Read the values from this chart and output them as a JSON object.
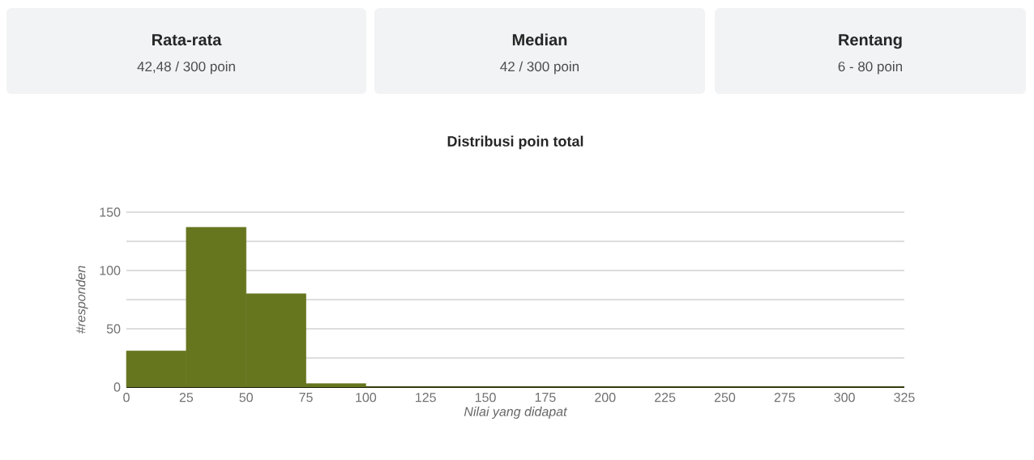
{
  "chart_data": [
    {
      "type": "other",
      "title": "Rata-rata",
      "subtitle": "42,48 / 300 poin"
    },
    {
      "type": "other",
      "title": "Median",
      "subtitle": "42 / 300 poin"
    },
    {
      "type": "other",
      "title": "Rentang",
      "subtitle": "6 - 80 poin"
    },
    {
      "type": "histogram",
      "title": "Distribusi poin total",
      "xlabel": "Nilai yang didapat",
      "ylabel": "#responden",
      "bins": [
        0,
        25,
        50,
        75,
        100,
        125,
        150,
        175,
        200,
        225,
        250,
        275,
        300,
        325
      ],
      "values": [
        31,
        137,
        80,
        3,
        0,
        0,
        0,
        0,
        0,
        0,
        0,
        0,
        0
      ],
      "color": "#66761f",
      "xlim": [
        0,
        325
      ],
      "xticks": [
        0,
        25,
        50,
        75,
        100,
        125,
        150,
        175,
        200,
        225,
        250,
        275,
        300,
        325
      ],
      "ylim": [
        0,
        150
      ],
      "yticks": [
        0,
        {
          "value": 25,
          "label": null
        },
        50,
        {
          "value": 75,
          "label": null
        },
        100,
        {
          "value": 125,
          "label": null
        },
        150
      ],
      "grid": "y"
    }
  ]
}
